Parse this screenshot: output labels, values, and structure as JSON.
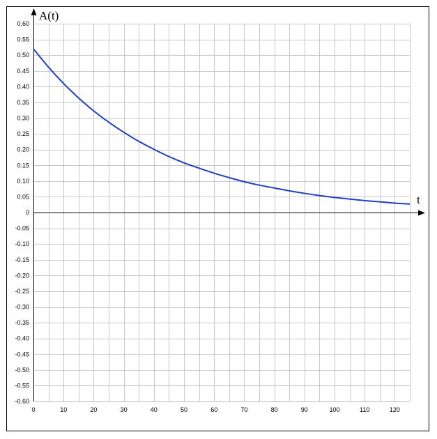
{
  "chart_data": {
    "type": "line",
    "xlabel": "t",
    "ylabel": "A(t)",
    "xlim": [
      0,
      125
    ],
    "ylim": [
      -0.6,
      0.6
    ],
    "grid": true,
    "x_ticks": [
      "0",
      "10",
      "20",
      "30",
      "40",
      "50",
      "60",
      "70",
      "80",
      "90",
      "100",
      "110",
      "120"
    ],
    "y_ticks": [
      "0.60",
      "0.55",
      "0.50",
      "0.45",
      "0.40",
      "0.35",
      "0.30",
      "0.25",
      "0.20",
      "0.15",
      "0.10",
      "0.05",
      "0",
      "-0.05",
      "-0.10",
      "-0.15",
      "-0.20",
      "-0.25",
      "-0.30",
      "-0.35",
      "-0.40",
      "-0.45",
      "-0.50",
      "-0.55",
      "-0.60"
    ],
    "series": [
      {
        "color": "#1f3fbf",
        "x": [
          0,
          5,
          10,
          15,
          20,
          25,
          30,
          35,
          40,
          45,
          50,
          55,
          60,
          65,
          70,
          75,
          80,
          85,
          90,
          95,
          100,
          105,
          110,
          115,
          120,
          125
        ],
        "y": [
          0.52,
          0.462,
          0.41,
          0.364,
          0.323,
          0.287,
          0.255,
          0.226,
          0.201,
          0.178,
          0.158,
          0.141,
          0.125,
          0.111,
          0.098,
          0.087,
          0.078,
          0.069,
          0.061,
          0.054,
          0.048,
          0.043,
          0.038,
          0.034,
          0.03,
          0.027
        ]
      }
    ]
  }
}
